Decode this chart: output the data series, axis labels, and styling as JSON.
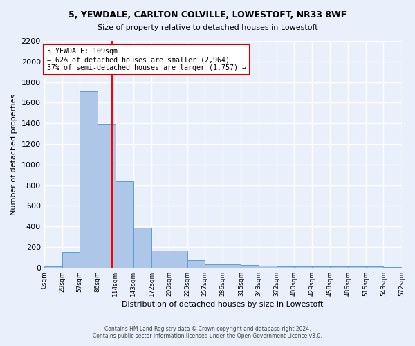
{
  "title1": "5, YEWDALE, CARLTON COLVILLE, LOWESTOFT, NR33 8WF",
  "title2": "Size of property relative to detached houses in Lowestoft",
  "xlabel": "Distribution of detached houses by size in Lowestoft",
  "ylabel": "Number of detached properties",
  "footnote1": "Contains HM Land Registry data © Crown copyright and database right 2024.",
  "footnote2": "Contains public sector information licensed under the Open Government Licence v3.0.",
  "bin_edges": [
    0,
    29,
    57,
    86,
    114,
    143,
    172,
    200,
    229,
    257,
    286,
    315,
    343,
    372,
    400,
    429,
    458,
    486,
    515,
    543,
    572
  ],
  "bar_heights": [
    10,
    155,
    1710,
    1395,
    835,
    390,
    165,
    165,
    70,
    30,
    30,
    25,
    20,
    15,
    15,
    10,
    10,
    10,
    10,
    5
  ],
  "bar_color": "#aec6e8",
  "bar_edge_color": "#5a9fd4",
  "red_line_x": 109,
  "red_line_color": "#ff0000",
  "annotation_line1": "5 YEWDALE: 109sqm",
  "annotation_line2": "← 62% of detached houses are smaller (2,964)",
  "annotation_line3": "37% of semi-detached houses are larger (1,757) →",
  "annotation_box_color": "#ffffff",
  "annotation_box_edge": "#cc0000",
  "ylim": [
    0,
    2200
  ],
  "yticks": [
    0,
    200,
    400,
    600,
    800,
    1000,
    1200,
    1400,
    1600,
    1800,
    2000,
    2200
  ],
  "tick_labels": [
    "0sqm",
    "29sqm",
    "57sqm",
    "86sqm",
    "114sqm",
    "143sqm",
    "172sqm",
    "200sqm",
    "229sqm",
    "257sqm",
    "286sqm",
    "315sqm",
    "343sqm",
    "372sqm",
    "400sqm",
    "429sqm",
    "458sqm",
    "486sqm",
    "515sqm",
    "543sqm",
    "572sqm"
  ],
  "bg_color": "#eaf0fb",
  "grid_color": "#ffffff"
}
